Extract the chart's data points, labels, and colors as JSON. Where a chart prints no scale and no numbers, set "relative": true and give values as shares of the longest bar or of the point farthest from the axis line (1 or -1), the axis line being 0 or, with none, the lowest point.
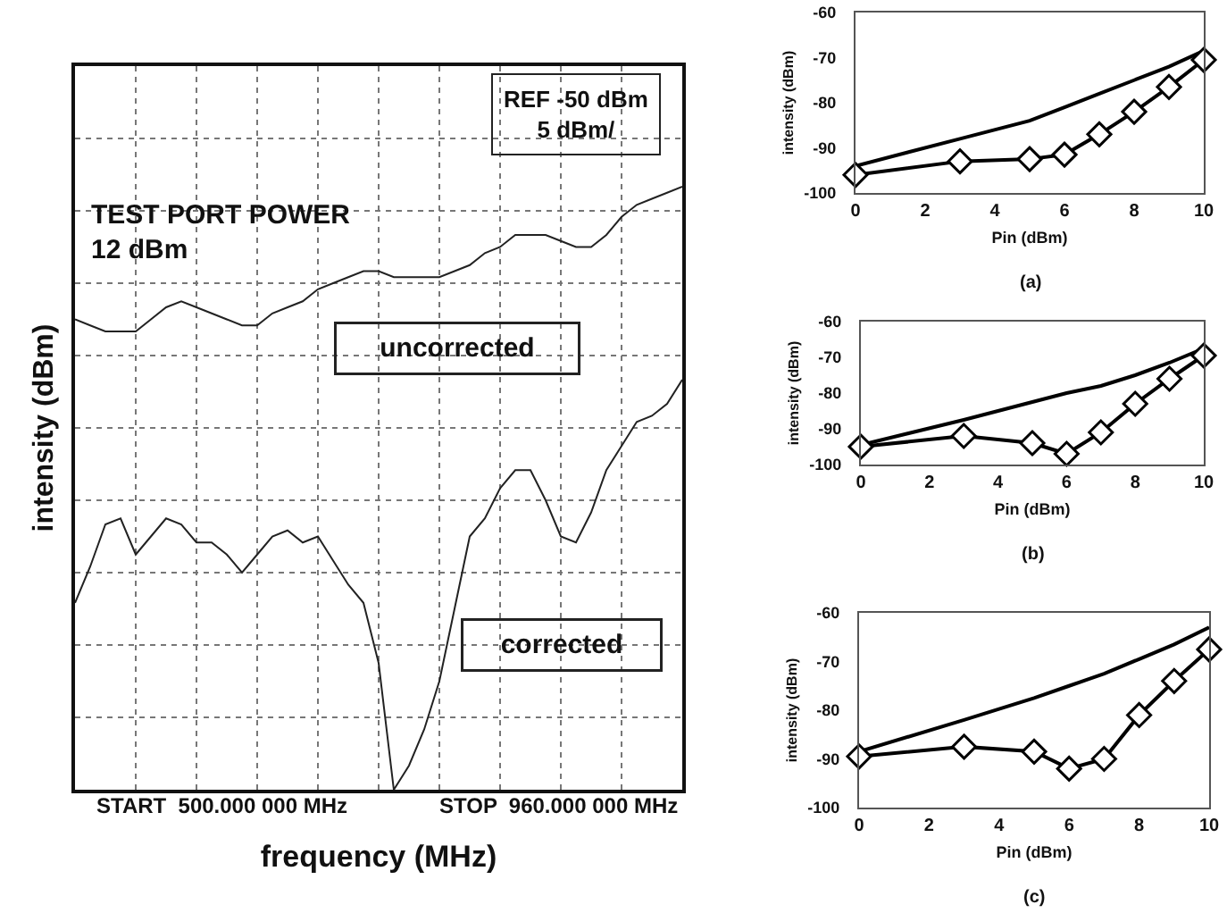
{
  "chart_data": [
    {
      "type": "line",
      "relative": true,
      "grid": true,
      "xlabel": "frequency (MHz)",
      "ylabel": "intensity (dBm)",
      "categories": [
        null,
        null,
        null,
        null,
        null,
        null,
        null,
        null,
        null,
        null,
        null,
        null,
        null,
        null,
        null,
        null,
        null,
        null,
        null,
        null,
        null,
        null,
        null,
        null,
        null,
        null,
        null,
        null,
        null,
        null,
        null,
        null,
        null,
        null,
        null,
        null,
        null,
        null,
        null,
        null,
        null
      ],
      "series": [
        {
          "name": "uncorrected",
          "color": "#222222",
          "values": [
            0.78,
            0.77,
            0.76,
            0.76,
            0.76,
            0.78,
            0.8,
            0.81,
            0.8,
            0.79,
            0.78,
            0.77,
            0.77,
            0.79,
            0.8,
            0.81,
            0.83,
            0.84,
            0.85,
            0.86,
            0.86,
            0.85,
            0.85,
            0.85,
            0.85,
            0.86,
            0.87,
            0.89,
            0.9,
            0.92,
            0.92,
            0.92,
            0.91,
            0.9,
            0.9,
            0.92,
            0.95,
            0.97,
            0.98,
            0.99,
            1
          ]
        },
        {
          "name": "corrected",
          "color": "#222222",
          "values": [
            0.31,
            0.37,
            0.44,
            0.45,
            0.39,
            0.42,
            0.45,
            0.44,
            0.41,
            0.41,
            0.39,
            0.36,
            0.39,
            0.42,
            0.43,
            0.41,
            0.42,
            0.38,
            0.34,
            0.31,
            0.21,
            0,
            0.04,
            0.1,
            0.18,
            0.3,
            0.42,
            0.45,
            0.5,
            0.53,
            0.53,
            0.48,
            0.42,
            0.41,
            0.46,
            0.53,
            0.57,
            0.61,
            0.62,
            0.64,
            0.68
          ]
        }
      ],
      "annotations": [
        "REF -50 dBm\n5 dBm/",
        "TEST PORT POWER\n12 dBm",
        "START  500.000 000 MHz",
        "STOP  960.000 000 MHz"
      ]
    },
    {
      "type": "line",
      "title": "(a)",
      "xlabel": "Pin (dBm)",
      "ylabel": "intensity (dBm)",
      "x": [
        0,
        3,
        5,
        6,
        7,
        8,
        9,
        10
      ],
      "xlim": [
        0,
        10
      ],
      "xticks": [
        0,
        2,
        4,
        6,
        8,
        10
      ],
      "ylim": [
        -100,
        -60
      ],
      "yticks": [
        -100,
        -90,
        -80,
        -70,
        -60
      ],
      "series": [
        {
          "color": "#000000",
          "marker": "none",
          "values": [
            -94,
            -88,
            -84,
            -81,
            -78,
            -75,
            -72,
            -68.5
          ]
        },
        {
          "color": "#000000",
          "marker": "diamond",
          "values": [
            -96,
            -93,
            -92.5,
            -91.5,
            -87,
            -82,
            -76.5,
            -70.5
          ]
        }
      ]
    },
    {
      "type": "line",
      "title": "(b)",
      "xlabel": "Pin (dBm)",
      "ylabel": "intensity (dBm)",
      "x": [
        0,
        3,
        5,
        6,
        7,
        8,
        9,
        10
      ],
      "xlim": [
        0,
        10
      ],
      "xticks": [
        0,
        2,
        4,
        6,
        8,
        10
      ],
      "ylim": [
        -100,
        -60
      ],
      "yticks": [
        -100,
        -90,
        -80,
        -70,
        -60
      ],
      "series": [
        {
          "color": "#000000",
          "marker": "none",
          "values": [
            -94.5,
            -87.5,
            -82.5,
            -80,
            -78,
            -75,
            -71.5,
            -67.5
          ]
        },
        {
          "color": "#000000",
          "marker": "diamond",
          "values": [
            -95,
            -92,
            -94,
            -97,
            -91,
            -83,
            -76,
            -69.5
          ]
        }
      ]
    },
    {
      "type": "line",
      "title": "(c)",
      "xlabel": "Pin (dBm)",
      "ylabel": "intensity (dBm)",
      "x": [
        0,
        3,
        5,
        6,
        7,
        8,
        9,
        10
      ],
      "xlim": [
        0,
        10
      ],
      "xticks": [
        0,
        2,
        4,
        6,
        8,
        10
      ],
      "ylim": [
        -100,
        -60
      ],
      "yticks": [
        -100,
        -90,
        -80,
        -70,
        -60
      ],
      "series": [
        {
          "color": "#000000",
          "marker": "none",
          "values": [
            -88.5,
            -82,
            -77.5,
            -75,
            -72.5,
            -69.5,
            -66.5,
            -63
          ]
        },
        {
          "color": "#000000",
          "marker": "diamond",
          "values": [
            -89.5,
            -87.5,
            -88.5,
            -92,
            -90,
            -81,
            -74,
            -67.5
          ]
        }
      ]
    }
  ]
}
